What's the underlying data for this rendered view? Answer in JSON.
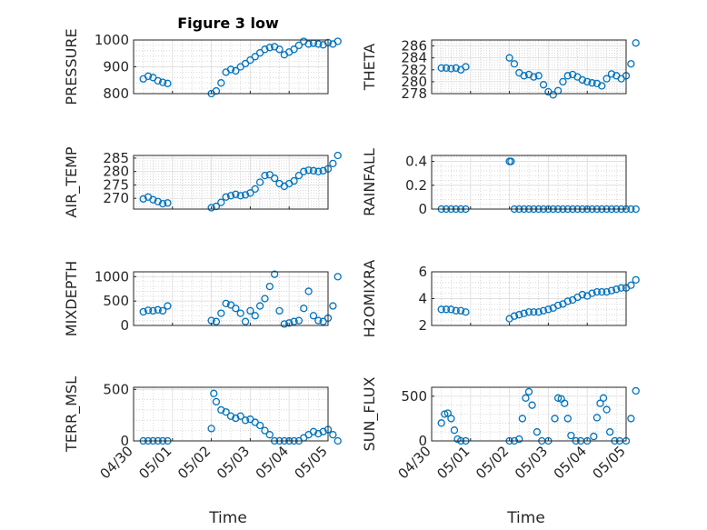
{
  "figure": {
    "title": "Figure 3 low"
  },
  "chart_data": [
    {
      "type": "scatter",
      "panel": "pressure",
      "ylabel": "PRESSURE",
      "ylim": [
        800,
        1000
      ],
      "yticks": [
        "800",
        "900",
        "1000"
      ],
      "xlim": [
        "04/30",
        "05/05"
      ],
      "grid": true,
      "marker": "circle-open",
      "color": "#0072BD",
      "x": [
        "04/30 06:00",
        "04/30 09:00",
        "04/30 12:00",
        "04/30 15:00",
        "04/30 18:00",
        "04/30 21:00",
        "05/01 00:00",
        "05/01 03:00",
        "05/01 06:00",
        "05/01 09:00",
        "05/01 12:00",
        "05/01 15:00",
        "05/01 18:00",
        "05/01 21:00",
        "05/02 00:00",
        "05/02 03:00",
        "05/02 06:00",
        "05/02 09:00",
        "05/02 12:00",
        "05/02 15:00",
        "05/02 18:00",
        "05/02 21:00",
        "05/03 00:00",
        "05/03 03:00",
        "05/03 06:00",
        "05/03 09:00",
        "05/03 12:00",
        "05/03 15:00",
        "05/03 18:00",
        "05/03 21:00",
        "05/04 00:00",
        "05/04 03:00",
        "05/04 06:00"
      ],
      "y": [
        855,
        865,
        860,
        848,
        842,
        838,
        800,
        810,
        840,
        880,
        890,
        885,
        900,
        912,
        925,
        938,
        952,
        965,
        972,
        975,
        965,
        945,
        955,
        965,
        980,
        995,
        985,
        988,
        985,
        982,
        990,
        985,
        995
      ]
    },
    {
      "type": "scatter",
      "panel": "theta",
      "ylabel": "THETA",
      "ylim": [
        278,
        287
      ],
      "yticks": [
        "278",
        "280",
        "282",
        "284",
        "286"
      ],
      "xlim": [
        "04/30",
        "05/05"
      ],
      "grid": true,
      "marker": "circle-open",
      "color": "#0072BD",
      "x": [
        "04/30 06:00",
        "04/30 09:00",
        "04/30 12:00",
        "04/30 15:00",
        "04/30 18:00",
        "04/30 21:00",
        "05/01 00:00",
        "05/01 03:00",
        "05/01 06:00",
        "05/01 09:00",
        "05/01 12:00",
        "05/01 15:00",
        "05/01 18:00",
        "05/01 21:00",
        "05/02 00:00",
        "05/02 03:00",
        "05/02 06:00",
        "05/02 09:00",
        "05/02 12:00",
        "05/02 15:00",
        "05/02 18:00",
        "05/02 21:00",
        "05/03 00:00",
        "05/03 03:00",
        "05/03 06:00",
        "05/03 09:00",
        "05/03 12:00",
        "05/03 15:00",
        "05/03 18:00",
        "05/03 21:00",
        "05/04 00:00",
        "05/04 03:00",
        "05/04 06:00"
      ],
      "y": [
        282.3,
        282.3,
        282.2,
        282.3,
        282.0,
        282.5,
        284.0,
        283.0,
        281.5,
        281.0,
        281.2,
        280.8,
        281.0,
        279.5,
        278.3,
        277.8,
        278.5,
        280.0,
        281.0,
        281.2,
        280.8,
        280.3,
        280.0,
        279.8,
        279.7,
        279.3,
        280.5,
        281.3,
        281.0,
        280.5,
        281.0,
        283.0,
        286.5
      ]
    },
    {
      "type": "scatter",
      "panel": "air_temp",
      "ylabel": "AIR_TEMP",
      "ylim": [
        266,
        286
      ],
      "yticks": [
        "270",
        "275",
        "280",
        "285"
      ],
      "xlim": [
        "04/30",
        "05/05"
      ],
      "grid": true,
      "marker": "circle-open",
      "color": "#0072BD",
      "x": [
        "04/30 06:00",
        "04/30 09:00",
        "04/30 12:00",
        "04/30 15:00",
        "04/30 18:00",
        "04/30 21:00",
        "05/01 00:00",
        "05/01 03:00",
        "05/01 06:00",
        "05/01 09:00",
        "05/01 12:00",
        "05/01 15:00",
        "05/01 18:00",
        "05/01 21:00",
        "05/02 00:00",
        "05/02 03:00",
        "05/02 06:00",
        "05/02 09:00",
        "05/02 12:00",
        "05/02 15:00",
        "05/02 18:00",
        "05/02 21:00",
        "05/03 00:00",
        "05/03 03:00",
        "05/03 06:00",
        "05/03 09:00",
        "05/03 12:00",
        "05/03 15:00",
        "05/03 18:00",
        "05/03 21:00",
        "05/04 00:00",
        "05/04 03:00",
        "05/04 06:00"
      ],
      "y": [
        269.8,
        270.5,
        269.5,
        268.8,
        268.0,
        268.3,
        266.5,
        267.0,
        268.5,
        270.5,
        271.0,
        271.5,
        271.0,
        271.3,
        272.0,
        273.5,
        276.0,
        278.5,
        278.8,
        277.5,
        275.5,
        274.5,
        275.5,
        276.5,
        278.5,
        280.0,
        280.5,
        280.3,
        280.0,
        280.3,
        281.0,
        283.0,
        286.0
      ]
    },
    {
      "type": "scatter",
      "panel": "rainfall",
      "ylabel": "RAINFALL",
      "ylim": [
        0,
        0.45
      ],
      "yticks": [
        "0",
        "0.2",
        "0.4"
      ],
      "xlim": [
        "04/30",
        "05/05"
      ],
      "grid": true,
      "marker": "circle-open",
      "color": "#0072BD",
      "x": [
        "04/30 06:00",
        "04/30 09:00",
        "04/30 12:00",
        "04/30 15:00",
        "04/30 18:00",
        "04/30 21:00",
        "05/01 00:00",
        "05/01 01:00",
        "05/01 03:00",
        "05/01 06:00",
        "05/01 09:00",
        "05/01 12:00",
        "05/01 15:00",
        "05/01 18:00",
        "05/01 21:00",
        "05/02 00:00",
        "05/02 03:00",
        "05/02 06:00",
        "05/02 09:00",
        "05/02 12:00",
        "05/02 15:00",
        "05/02 18:00",
        "05/02 21:00",
        "05/03 00:00",
        "05/03 03:00",
        "05/03 06:00",
        "05/03 09:00",
        "05/03 12:00",
        "05/03 15:00",
        "05/03 18:00",
        "05/03 21:00",
        "05/04 00:00",
        "05/04 03:00",
        "05/04 06:00"
      ],
      "y": [
        0,
        0,
        0,
        0,
        0,
        0,
        0.4,
        0.4,
        0,
        0,
        0,
        0,
        0,
        0,
        0,
        0,
        0,
        0,
        0,
        0,
        0,
        0,
        0,
        0,
        0,
        0,
        0,
        0,
        0,
        0,
        0,
        0,
        0,
        0
      ]
    },
    {
      "type": "scatter",
      "panel": "mixdepth",
      "ylabel": "MIXDEPTH",
      "ylim": [
        0,
        1100
      ],
      "yticks": [
        "0",
        "500",
        "1000"
      ],
      "xlim": [
        "04/30",
        "05/05"
      ],
      "grid": true,
      "marker": "circle-open",
      "color": "#0072BD",
      "x": [
        "04/30 06:00",
        "04/30 09:00",
        "04/30 12:00",
        "04/30 15:00",
        "04/30 18:00",
        "04/30 21:00",
        "05/01 00:00",
        "05/01 03:00",
        "05/01 06:00",
        "05/01 09:00",
        "05/01 12:00",
        "05/01 15:00",
        "05/01 18:00",
        "05/01 21:00",
        "05/02 00:00",
        "05/02 03:00",
        "05/02 06:00",
        "05/02 09:00",
        "05/02 12:00",
        "05/02 15:00",
        "05/02 18:00",
        "05/02 21:00",
        "05/03 00:00",
        "05/03 03:00",
        "05/03 06:00",
        "05/03 09:00",
        "05/03 12:00",
        "05/03 15:00",
        "05/03 18:00",
        "05/03 21:00",
        "05/04 00:00",
        "05/04 03:00",
        "05/04 06:00"
      ],
      "y": [
        280,
        310,
        300,
        320,
        300,
        400,
        100,
        80,
        250,
        450,
        420,
        350,
        250,
        80,
        300,
        200,
        400,
        550,
        800,
        1050,
        300,
        30,
        50,
        80,
        100,
        350,
        700,
        200,
        100,
        80,
        150,
        400,
        1000
      ]
    },
    {
      "type": "scatter",
      "panel": "h2omixra",
      "ylabel": "H2OMIXRA",
      "ylim": [
        2,
        6
      ],
      "yticks": [
        "2",
        "4",
        "6"
      ],
      "xlim": [
        "04/30",
        "05/05"
      ],
      "grid": true,
      "marker": "circle-open",
      "color": "#0072BD",
      "x": [
        "04/30 06:00",
        "04/30 09:00",
        "04/30 12:00",
        "04/30 15:00",
        "04/30 18:00",
        "04/30 21:00",
        "05/01 00:00",
        "05/01 03:00",
        "05/01 06:00",
        "05/01 09:00",
        "05/01 12:00",
        "05/01 15:00",
        "05/01 18:00",
        "05/01 21:00",
        "05/02 00:00",
        "05/02 03:00",
        "05/02 06:00",
        "05/02 09:00",
        "05/02 12:00",
        "05/02 15:00",
        "05/02 18:00",
        "05/02 21:00",
        "05/03 00:00",
        "05/03 03:00",
        "05/03 06:00",
        "05/03 09:00",
        "05/03 12:00",
        "05/03 15:00",
        "05/03 18:00",
        "05/03 21:00",
        "05/04 00:00",
        "05/04 03:00",
        "05/04 06:00"
      ],
      "y": [
        3.2,
        3.2,
        3.2,
        3.1,
        3.1,
        3.0,
        2.5,
        2.7,
        2.8,
        2.9,
        3.0,
        3.0,
        3.0,
        3.1,
        3.2,
        3.3,
        3.5,
        3.6,
        3.8,
        3.9,
        4.1,
        4.3,
        4.2,
        4.4,
        4.5,
        4.5,
        4.5,
        4.6,
        4.7,
        4.8,
        4.8,
        5.0,
        5.4
      ]
    },
    {
      "type": "scatter",
      "panel": "terr_msl",
      "ylabel": "TERR_MSL",
      "ylim": [
        0,
        520
      ],
      "yticks": [
        "0",
        "500"
      ],
      "xlim": [
        "04/30",
        "05/05"
      ],
      "grid": true,
      "marker": "circle-open",
      "color": "#0072BD",
      "x": [
        "04/30 06:00",
        "04/30 09:00",
        "04/30 12:00",
        "04/30 15:00",
        "04/30 18:00",
        "04/30 21:00",
        "05/01 00:00",
        "05/01 01:30",
        "05/01 03:00",
        "05/01 06:00",
        "05/01 09:00",
        "05/01 12:00",
        "05/01 15:00",
        "05/01 18:00",
        "05/01 21:00",
        "05/02 00:00",
        "05/02 03:00",
        "05/02 06:00",
        "05/02 09:00",
        "05/02 12:00",
        "05/02 15:00",
        "05/02 18:00",
        "05/02 21:00",
        "05/03 00:00",
        "05/03 03:00",
        "05/03 06:00",
        "05/03 09:00",
        "05/03 12:00",
        "05/03 15:00",
        "05/03 18:00",
        "05/03 21:00",
        "05/04 00:00",
        "05/04 03:00",
        "05/04 06:00"
      ],
      "y": [
        0,
        0,
        0,
        0,
        0,
        0,
        120,
        460,
        380,
        300,
        280,
        240,
        220,
        240,
        200,
        210,
        180,
        150,
        100,
        60,
        0,
        0,
        0,
        0,
        0,
        0,
        30,
        60,
        90,
        70,
        90,
        110,
        60,
        0
      ]
    },
    {
      "type": "scatter",
      "panel": "sun_flux",
      "ylabel": "SUN_FLUX",
      "ylim": [
        0,
        600
      ],
      "yticks": [
        "0",
        "500"
      ],
      "xlim": [
        "04/30",
        "05/05"
      ],
      "grid": true,
      "marker": "circle-open",
      "color": "#0072BD",
      "x": [
        "04/30 06:00",
        "04/30 08:00",
        "04/30 10:00",
        "04/30 12:00",
        "04/30 14:00",
        "04/30 16:00",
        "04/30 18:00",
        "04/30 21:00",
        "05/01 00:00",
        "05/01 03:00",
        "05/01 06:00",
        "05/01 08:00",
        "05/01 10:00",
        "05/01 12:00",
        "05/01 14:00",
        "05/01 17:00",
        "05/01 20:00",
        "05/02 00:00",
        "05/02 04:00",
        "05/02 06:00",
        "05/02 08:00",
        "05/02 10:00",
        "05/02 12:00",
        "05/02 14:00",
        "05/02 17:00",
        "05/02 20:00",
        "05/03 00:00",
        "05/03 04:00",
        "05/03 06:00",
        "05/03 08:00",
        "05/03 10:00",
        "05/03 12:00",
        "05/03 14:00",
        "05/03 17:00",
        "05/03 20:00",
        "05/04 00:00",
        "05/04 03:00",
        "05/04 06:00"
      ],
      "y": [
        200,
        300,
        310,
        250,
        120,
        20,
        0,
        0,
        0,
        0,
        20,
        250,
        480,
        550,
        400,
        100,
        0,
        0,
        250,
        480,
        470,
        420,
        250,
        60,
        0,
        0,
        0,
        50,
        260,
        420,
        480,
        350,
        100,
        0,
        0,
        0,
        250,
        560
      ]
    }
  ],
  "axes_common": {
    "xticks": [
      "04/30",
      "05/01",
      "05/02",
      "05/03",
      "05/04",
      "05/05"
    ],
    "xlabel": "Time"
  }
}
